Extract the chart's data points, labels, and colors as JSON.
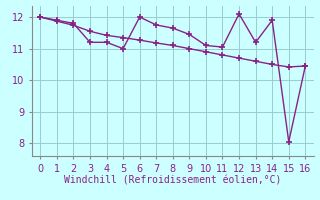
{
  "x": [
    0,
    1,
    2,
    3,
    4,
    5,
    6,
    7,
    8,
    9,
    10,
    11,
    12,
    13,
    14,
    15,
    16
  ],
  "y_data": [
    12.0,
    11.9,
    11.8,
    11.2,
    11.2,
    11.0,
    12.0,
    11.75,
    11.65,
    11.45,
    11.1,
    11.05,
    12.1,
    11.2,
    11.9,
    8.05,
    10.45
  ],
  "y_trend": [
    12.0,
    11.87,
    11.74,
    11.55,
    11.42,
    11.35,
    11.27,
    11.18,
    11.1,
    11.0,
    10.9,
    10.8,
    10.7,
    10.6,
    10.5,
    10.42,
    10.45
  ],
  "line_color": "#882288",
  "background_color": "#ccffff",
  "grid_color": "#99cccc",
  "spine_color": "#888888",
  "xlabel": "Windchill (Refroidissement éolien,°C)",
  "ylim": [
    7.6,
    12.35
  ],
  "xlim": [
    -0.5,
    16.5
  ],
  "yticks": [
    8,
    9,
    10,
    11,
    12
  ],
  "xticks": [
    0,
    1,
    2,
    3,
    4,
    5,
    6,
    7,
    8,
    9,
    10,
    11,
    12,
    13,
    14,
    15,
    16
  ],
  "marker": "+",
  "markersize": 4,
  "linewidth": 1.0,
  "xlabel_fontsize": 7,
  "tick_fontsize": 7,
  "tick_color": "#882288",
  "xlabel_color": "#882288"
}
